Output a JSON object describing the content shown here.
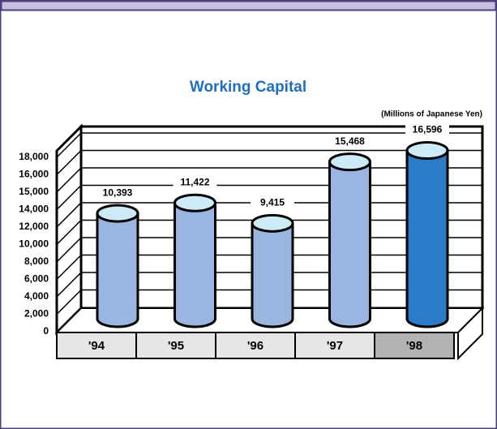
{
  "chart_data": {
    "type": "bar",
    "title": "Working Capital",
    "subtitle": "(Millions of Japanese Yen)",
    "categories": [
      "'94",
      "'95",
      "'96",
      "'97",
      "'98"
    ],
    "values": [
      10393,
      11422,
      9415,
      15468,
      16596
    ],
    "value_labels": [
      "10,393",
      "11,422",
      "9,415",
      "15,468",
      "16,596"
    ],
    "colors": [
      "#9bb5e1",
      "#9bb5e1",
      "#9bb5e1",
      "#9bb5e1",
      "#2a7cc9"
    ],
    "ylim": [
      0,
      18000
    ],
    "yticks": [
      {
        "value": 0,
        "label": "0"
      },
      {
        "value": 2000,
        "label": "2,000"
      },
      {
        "value": 4000,
        "label": "4,000"
      },
      {
        "value": 6000,
        "label": "6,000"
      },
      {
        "value": 8000,
        "label": "8,000"
      },
      {
        "value": 10000,
        "label": "10,000"
      },
      {
        "value": 12000,
        "label": "12,000"
      },
      {
        "value": 14000,
        "label": "14,000"
      },
      {
        "value": 15000,
        "label": "15,000"
      },
      {
        "value": 16000,
        "label": "16,000"
      },
      {
        "value": 18000,
        "label": "18,000"
      }
    ],
    "grid": true
  }
}
